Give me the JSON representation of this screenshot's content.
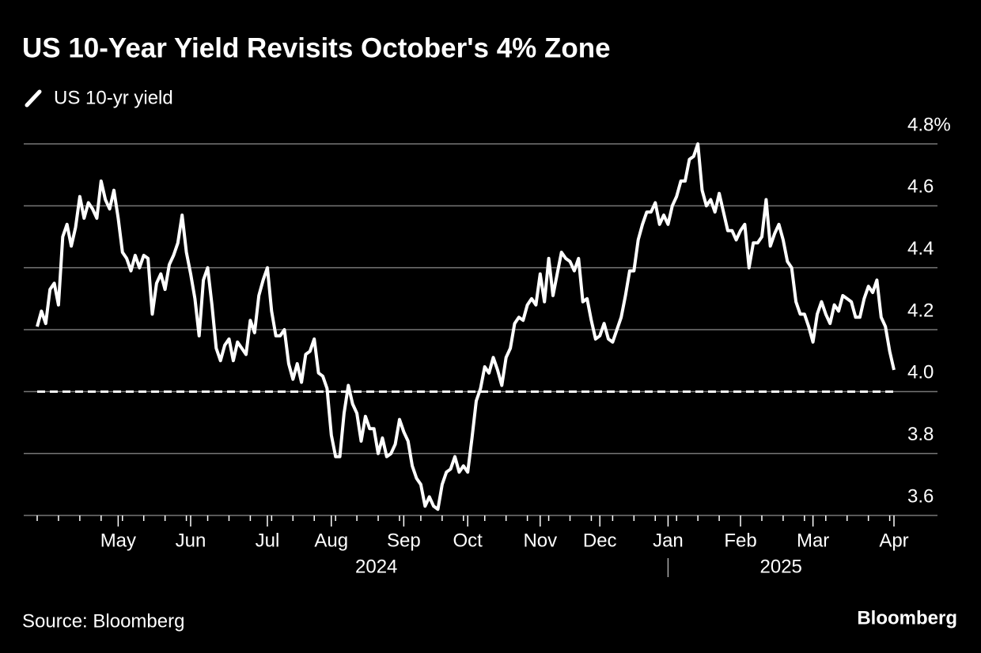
{
  "chart_data": {
    "type": "line",
    "title": "US 10-Year Yield Revisits October's 4% Zone",
    "series": [
      {
        "name": "US 10-yr yield",
        "color": "#ffffff",
        "values": [
          4.21,
          4.26,
          4.22,
          4.33,
          4.35,
          4.28,
          4.5,
          4.54,
          4.47,
          4.53,
          4.63,
          4.56,
          4.61,
          4.59,
          4.56,
          4.68,
          4.62,
          4.59,
          4.65,
          4.56,
          4.45,
          4.43,
          4.39,
          4.44,
          4.4,
          4.44,
          4.43,
          4.25,
          4.35,
          4.38,
          4.33,
          4.41,
          4.44,
          4.48,
          4.57,
          4.45,
          4.38,
          4.3,
          4.18,
          4.36,
          4.4,
          4.28,
          4.14,
          4.1,
          4.15,
          4.17,
          4.1,
          4.16,
          4.14,
          4.12,
          4.23,
          4.19,
          4.31,
          4.36,
          4.4,
          4.26,
          4.18,
          4.18,
          4.2,
          4.09,
          4.04,
          4.09,
          4.03,
          4.12,
          4.13,
          4.17,
          4.06,
          4.05,
          4.01,
          3.86,
          3.79,
          3.79,
          3.93,
          4.02,
          3.96,
          3.93,
          3.84,
          3.92,
          3.88,
          3.88,
          3.8,
          3.85,
          3.79,
          3.8,
          3.83,
          3.91,
          3.87,
          3.84,
          3.76,
          3.72,
          3.7,
          3.63,
          3.66,
          3.63,
          3.62,
          3.7,
          3.74,
          3.75,
          3.79,
          3.74,
          3.76,
          3.74,
          3.85,
          3.97,
          4.01,
          4.08,
          4.06,
          4.11,
          4.07,
          4.02,
          4.11,
          4.14,
          4.22,
          4.24,
          4.23,
          4.28,
          4.3,
          4.28,
          4.38,
          4.29,
          4.43,
          4.31,
          4.38,
          4.45,
          4.43,
          4.42,
          4.39,
          4.43,
          4.29,
          4.3,
          4.23,
          4.17,
          4.18,
          4.22,
          4.17,
          4.16,
          4.2,
          4.24,
          4.31,
          4.39,
          4.39,
          4.49,
          4.54,
          4.58,
          4.58,
          4.61,
          4.54,
          4.57,
          4.54,
          4.6,
          4.63,
          4.68,
          4.68,
          4.75,
          4.76,
          4.8,
          4.65,
          4.6,
          4.62,
          4.58,
          4.64,
          4.58,
          4.52,
          4.52,
          4.49,
          4.52,
          4.54,
          4.4,
          4.48,
          4.48,
          4.5,
          4.62,
          4.47,
          4.51,
          4.54,
          4.49,
          4.42,
          4.4,
          4.29,
          4.25,
          4.25,
          4.21,
          4.16,
          4.25,
          4.29,
          4.25,
          4.22,
          4.28,
          4.26,
          4.31,
          4.3,
          4.29,
          4.24,
          4.24,
          4.3,
          4.34,
          4.32,
          4.36,
          4.24,
          4.21,
          4.13,
          4.07
        ]
      }
    ],
    "categories": [
      null,
      null,
      null,
      null,
      null,
      null,
      null,
      null,
      null,
      null,
      null,
      null,
      null,
      null,
      null,
      null,
      null,
      null,
      null,
      "May",
      null,
      null,
      null,
      null,
      null,
      null,
      null,
      null,
      null,
      null,
      null,
      null,
      null,
      null,
      null,
      null,
      "Jun",
      null,
      null,
      null,
      null,
      null,
      null,
      null,
      null,
      null,
      null,
      null,
      null,
      null,
      null,
      null,
      null,
      null,
      "Jul",
      null,
      null,
      null,
      null,
      null,
      null,
      null,
      null,
      null,
      null,
      null,
      null,
      null,
      null,
      "Aug",
      null,
      null,
      null,
      null,
      null,
      null,
      null,
      null,
      null,
      null,
      null,
      null,
      null,
      null,
      null,
      null,
      "Sep",
      null,
      null,
      null,
      null,
      null,
      null,
      null,
      null,
      null,
      null,
      null,
      null,
      null,
      null,
      "Oct",
      null,
      null,
      null,
      null,
      null,
      null,
      null,
      null,
      null,
      null,
      null,
      null,
      null,
      null,
      null,
      null,
      "Nov",
      null,
      null,
      null,
      null,
      null,
      null,
      null,
      null,
      null,
      null,
      null,
      null,
      null,
      "Dec",
      null,
      null,
      null,
      null,
      null,
      null,
      null,
      null,
      null,
      null,
      null,
      null,
      null,
      null,
      null,
      "Jan",
      null,
      null,
      null,
      null,
      null,
      null,
      null,
      null,
      null,
      null,
      null,
      null,
      null,
      null,
      null,
      null,
      "Feb",
      null,
      null,
      null,
      null,
      null,
      null,
      null,
      null,
      null,
      null,
      null,
      null,
      null,
      null,
      null,
      null,
      "Mar",
      null,
      null,
      null,
      null,
      null,
      null,
      null,
      null,
      null,
      null,
      null,
      null,
      null,
      null,
      null,
      null,
      null,
      null,
      "Apr"
    ],
    "year_labels": [
      "2024",
      "2025"
    ],
    "reference_value": 4,
    "ylim": [
      3.6,
      4.8
    ],
    "yticks": [
      3.6,
      3.8,
      {
        "value": 4,
        "label": "4.0"
      },
      4.2,
      4.4,
      4.6,
      {
        "value": 4.8,
        "label": "4.8%"
      }
    ],
    "grid": true,
    "source": "Source: Bloomberg",
    "brand": "Bloomberg"
  }
}
